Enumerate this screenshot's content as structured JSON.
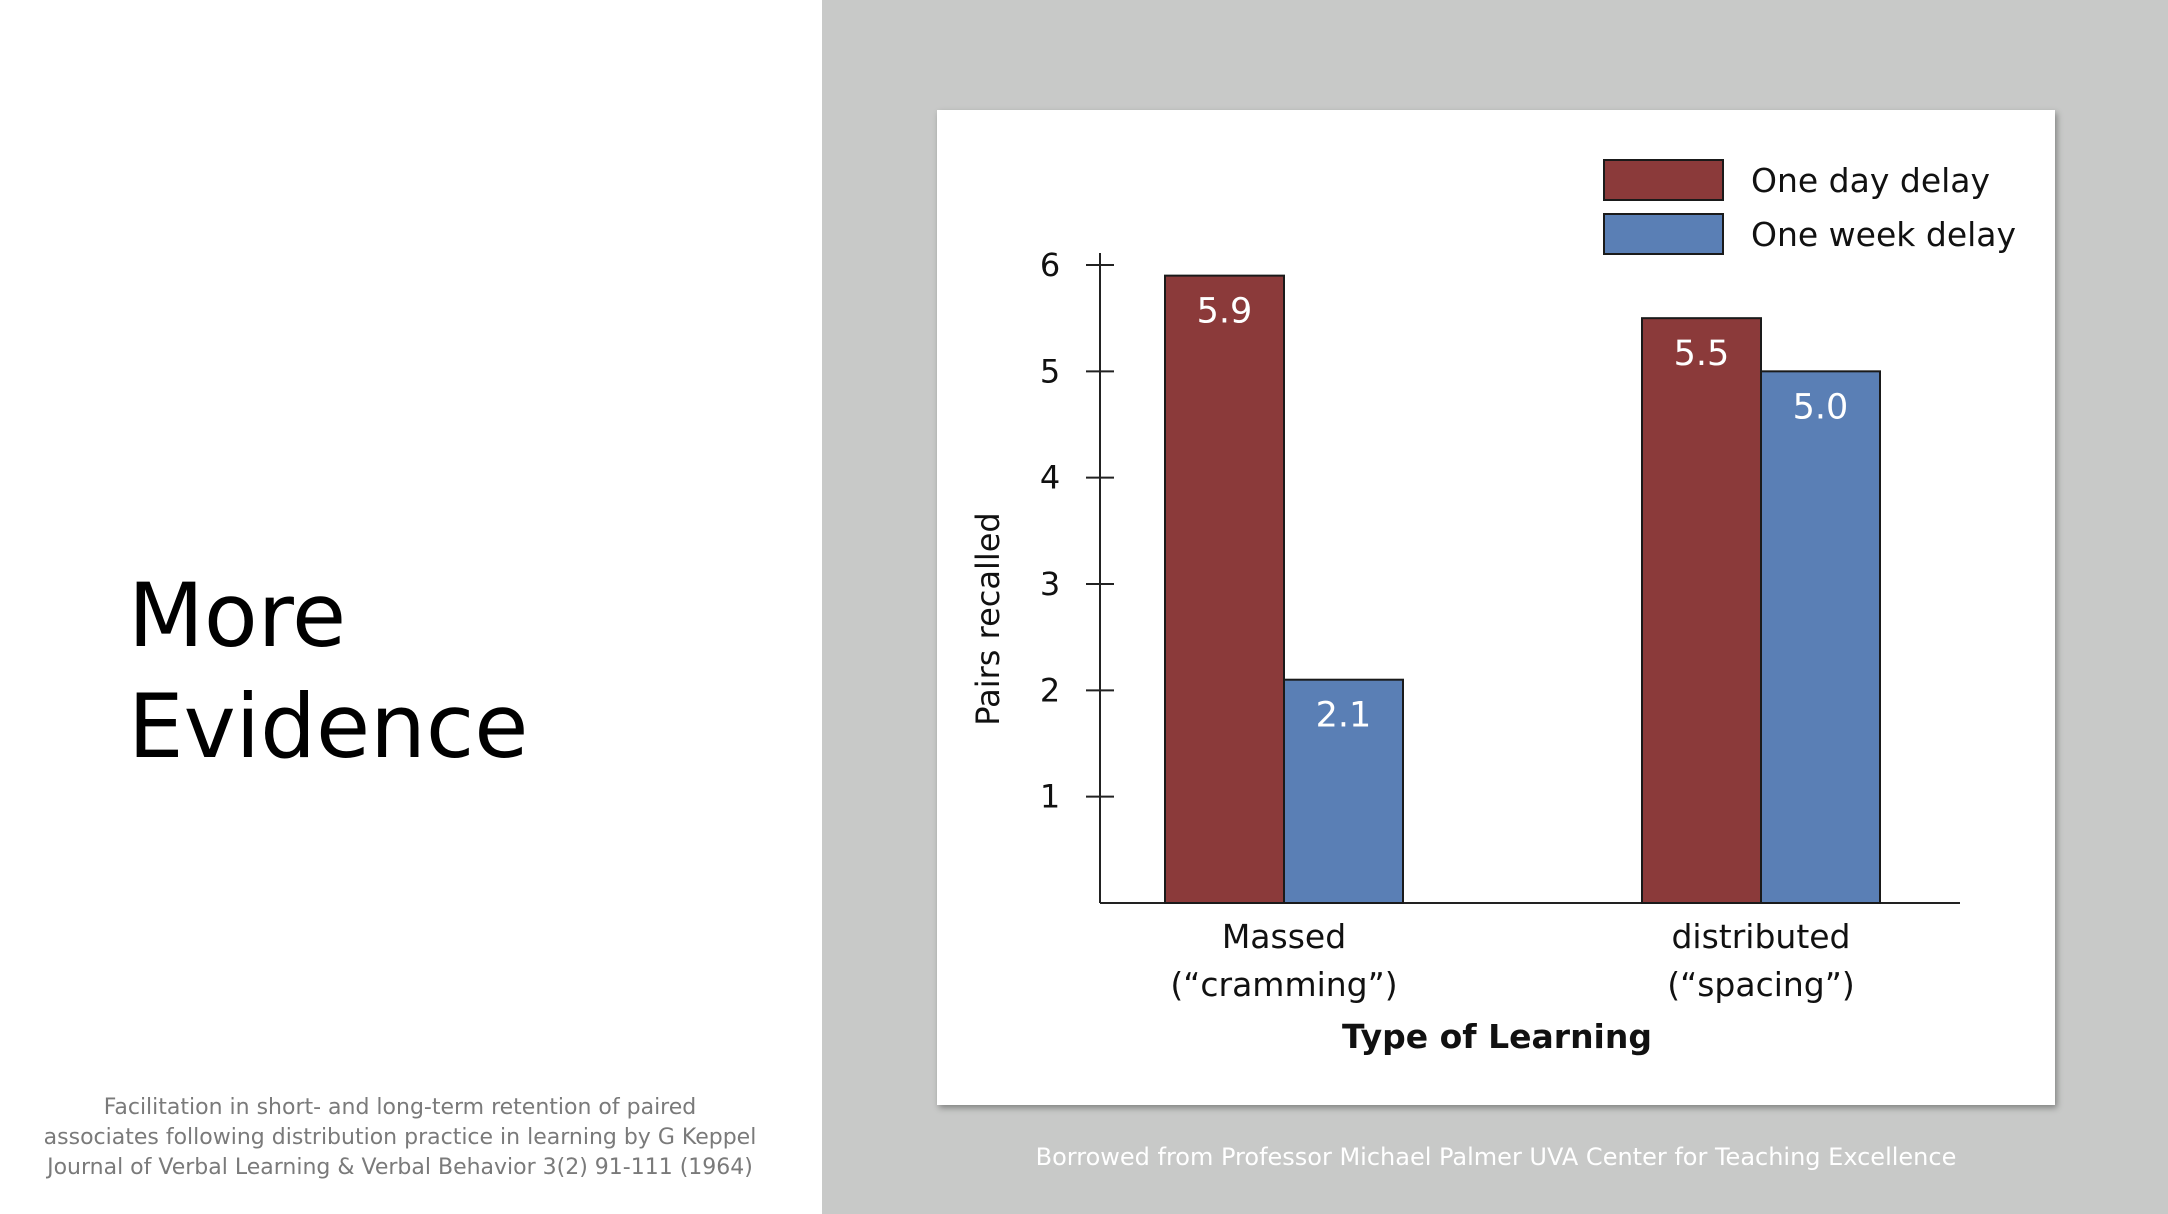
{
  "slide": {
    "title_lines": [
      "More",
      "Evidence"
    ],
    "citation_lines": [
      "Facilitation in short- and long-term retention of paired",
      "associates following distribution practice in learning by G Keppel",
      "Journal of Verbal Learning & Verbal Behavior 3(2) 91-111 (1964)"
    ],
    "credit": "Borrowed from Professor Michael Palmer UVA Center for Teaching Excellence"
  },
  "colors": {
    "one_day": "#8b3a3a",
    "one_week": "#5a7fb5",
    "panel_bg": "#c8c9c8"
  },
  "chart_data": {
    "type": "bar",
    "categories": [
      [
        "Massed",
        "(“cramming”)"
      ],
      [
        "distributed",
        "(“spacing”)"
      ]
    ],
    "series": [
      {
        "name": "One day delay",
        "values": [
          5.9,
          5.5
        ],
        "labels": [
          "5.9",
          "5.5"
        ],
        "color": "#8b3a3a"
      },
      {
        "name": "One week delay",
        "values": [
          2.1,
          5.0
        ],
        "labels": [
          "2.1",
          "5.0"
        ],
        "color": "#5a7fb5"
      }
    ],
    "xlabel": "Type of Learning",
    "ylabel": "Pairs recalled",
    "yticks": [
      1,
      2,
      3,
      4,
      5,
      6
    ],
    "ylim": [
      0,
      6
    ],
    "grid": false,
    "legend": "top-right"
  }
}
